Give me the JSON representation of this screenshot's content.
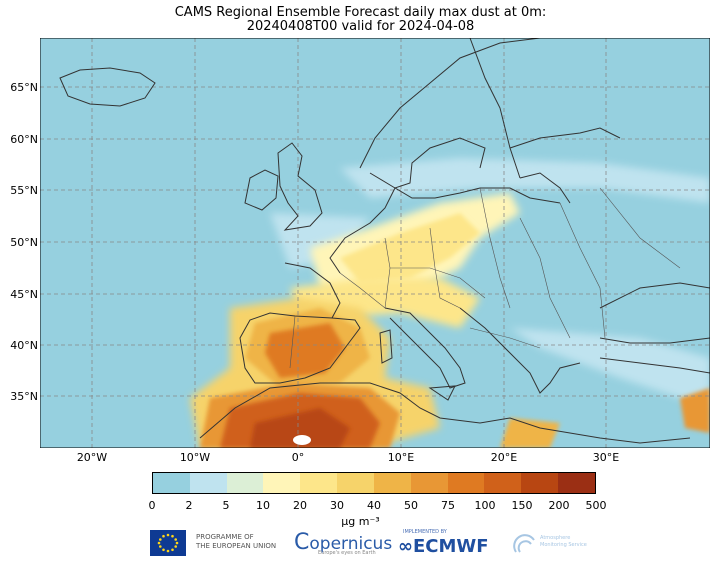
{
  "title": {
    "line1": "CAMS Regional Ensemble Forecast daily max dust at 0m:",
    "line2": "20240408T00 valid for 2024-04-08"
  },
  "map": {
    "lat_labels": [
      "65°N",
      "60°N",
      "55°N",
      "50°N",
      "45°N",
      "40°N",
      "35°N"
    ],
    "lon_labels": [
      "20°W",
      "10°W",
      "0°",
      "10°E",
      "20°E",
      "30°E"
    ],
    "extent": {
      "lon_min": -25,
      "lon_max": 40,
      "lat_min": 30,
      "lat_max": 70
    }
  },
  "colorbar": {
    "ticks": [
      "0",
      "2",
      "5",
      "10",
      "20",
      "30",
      "40",
      "50",
      "75",
      "100",
      "150",
      "200",
      "500"
    ],
    "colors": [
      "#96d0df",
      "#bfe3ef",
      "#dcefd6",
      "#fff5b8",
      "#fde68a",
      "#f6d36a",
      "#efb447",
      "#e89735",
      "#df7a22",
      "#d0611a",
      "#b84612",
      "#9b2f14"
    ],
    "units": "μg m⁻³"
  },
  "logos": {
    "eu_line1": "PROGRAMME OF",
    "eu_line2": "THE EUROPEAN UNION",
    "copernicus": "opernicus",
    "copernicus_sub": "Europe's eyes on Earth",
    "ecmwf_small": "IMPLEMENTED BY",
    "ecmwf": "ECMWF",
    "cams_line1": "Atmosphere",
    "cams_line2": "Monitoring Service"
  }
}
